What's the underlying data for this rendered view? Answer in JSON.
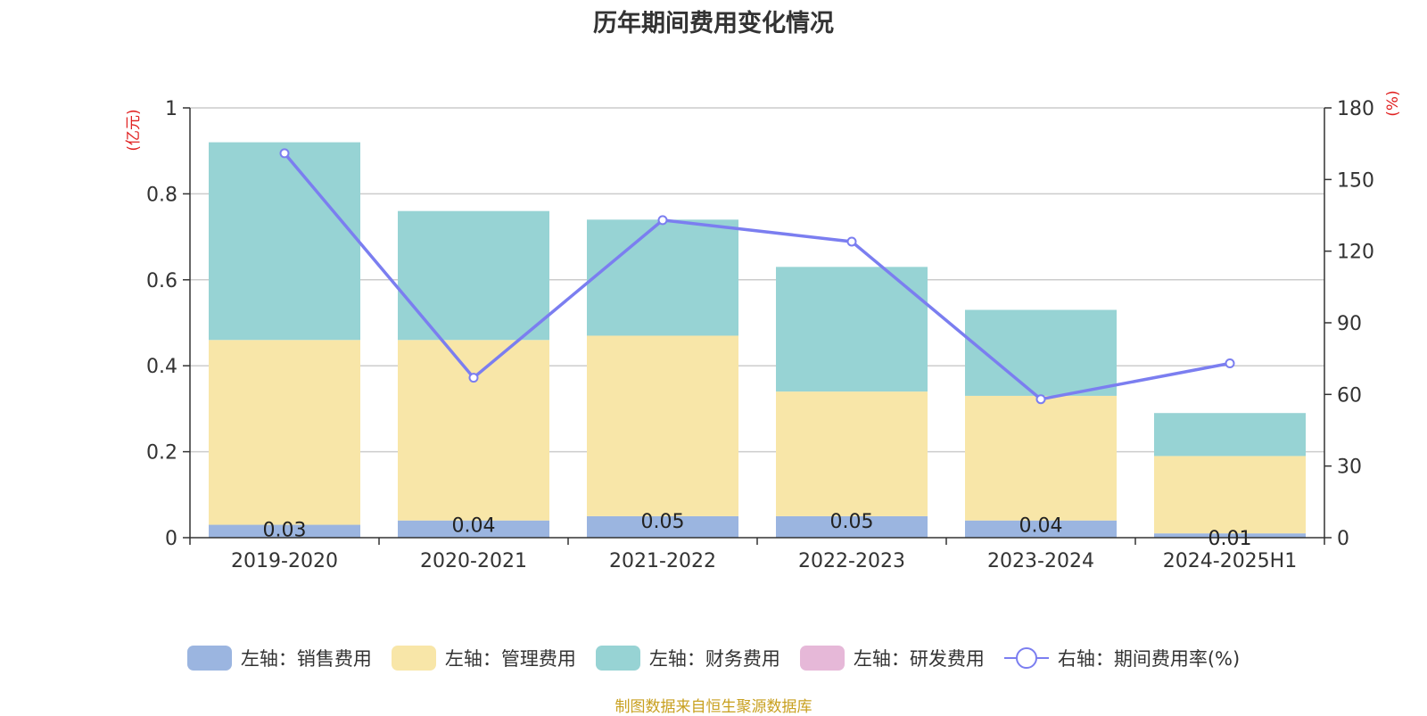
{
  "chart_data": {
    "type": "bar",
    "stacked": true,
    "title": "历年期间费用变化情况",
    "categories": [
      "2019-2020",
      "2020-2021",
      "2021-2022",
      "2022-2023",
      "2023-2024",
      "2024-2025H1"
    ],
    "left_axis": {
      "unit_label": "(亿元)",
      "range": [
        0,
        1
      ],
      "ticks": [
        "0",
        "0.2",
        "0.4",
        "0.6",
        "0.8",
        "1"
      ]
    },
    "right_axis": {
      "unit_label": "(%)",
      "range": [
        0,
        180
      ],
      "ticks": [
        "0",
        "30",
        "60",
        "90",
        "120",
        "150",
        "180"
      ]
    },
    "series": [
      {
        "name": "左轴：销售费用",
        "type": "bar",
        "axis": "left",
        "color": "#9bb5e0",
        "values": [
          0.03,
          0.04,
          0.05,
          0.05,
          0.04,
          0.01
        ],
        "labels": [
          "0.03",
          "0.04",
          "0.05",
          "0.05",
          "0.04",
          "0.01"
        ]
      },
      {
        "name": "左轴：管理费用",
        "type": "bar",
        "axis": "left",
        "color": "#f8e6a8",
        "values": [
          0.43,
          0.42,
          0.42,
          0.29,
          0.29,
          0.18
        ]
      },
      {
        "name": "左轴：财务费用",
        "type": "bar",
        "axis": "left",
        "color": "#97d3d4",
        "values": [
          0.46,
          0.3,
          0.27,
          0.29,
          0.2,
          0.1
        ]
      },
      {
        "name": "左轴：研发费用",
        "type": "bar",
        "axis": "left",
        "color": "#e6b8d8",
        "values": [
          0,
          0,
          0,
          0,
          0,
          0
        ]
      },
      {
        "name": "右轴：期间费用率(%)",
        "type": "line",
        "axis": "right",
        "color": "#7b7ef0",
        "values": [
          161,
          67,
          133,
          124,
          58,
          73
        ]
      }
    ],
    "grid": true,
    "legend_position": "bottom"
  },
  "source_note": "制图数据来自恒生聚源数据库"
}
